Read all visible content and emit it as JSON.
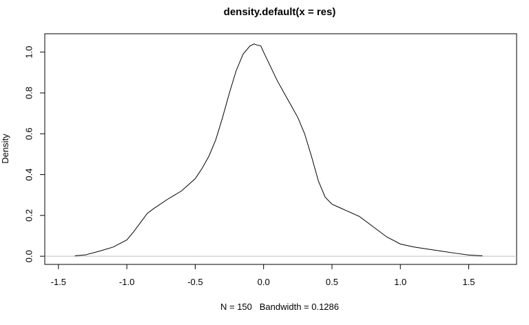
{
  "chart_data": {
    "type": "line",
    "title": "density.default(x = res)",
    "xlabel": "N = 150   Bandwidth = 0.1286",
    "ylabel": "Density",
    "xlim": [
      -1.6,
      1.85
    ],
    "ylim": [
      -0.04,
      1.09
    ],
    "x_ticks": [
      -1.5,
      -1.0,
      -0.5,
      0.0,
      0.5,
      1.0,
      1.5
    ],
    "x_tick_labels": [
      "-1.5",
      "-1.0",
      "-0.5",
      "0.0",
      "0.5",
      "1.0",
      "1.5"
    ],
    "y_ticks": [
      0.0,
      0.2,
      0.4,
      0.6,
      0.8,
      1.0
    ],
    "y_tick_labels": [
      "0.0",
      "0.2",
      "0.4",
      "0.6",
      "0.8",
      "1.0"
    ],
    "baseline": 0.0,
    "grid": false,
    "series": [
      {
        "x": [
          -1.38,
          -1.3,
          -1.2,
          -1.1,
          -1.0,
          -0.95,
          -0.9,
          -0.85,
          -0.8,
          -0.7,
          -0.6,
          -0.5,
          -0.45,
          -0.4,
          -0.35,
          -0.3,
          -0.25,
          -0.2,
          -0.15,
          -0.1,
          -0.07,
          -0.05,
          -0.02,
          0.0,
          0.05,
          0.1,
          0.15,
          0.2,
          0.25,
          0.3,
          0.35,
          0.4,
          0.45,
          0.5,
          0.55,
          0.6,
          0.7,
          0.8,
          0.9,
          1.0,
          1.1,
          1.2,
          1.3,
          1.4,
          1.5,
          1.6
        ],
        "y": [
          0.002,
          0.007,
          0.025,
          0.045,
          0.08,
          0.12,
          0.165,
          0.21,
          0.235,
          0.28,
          0.32,
          0.38,
          0.43,
          0.49,
          0.57,
          0.68,
          0.8,
          0.91,
          0.99,
          1.03,
          1.04,
          1.035,
          1.03,
          1.0,
          0.93,
          0.86,
          0.8,
          0.74,
          0.68,
          0.6,
          0.49,
          0.37,
          0.29,
          0.255,
          0.24,
          0.225,
          0.195,
          0.145,
          0.095,
          0.06,
          0.045,
          0.035,
          0.025,
          0.015,
          0.006,
          0.002
        ]
      }
    ]
  }
}
